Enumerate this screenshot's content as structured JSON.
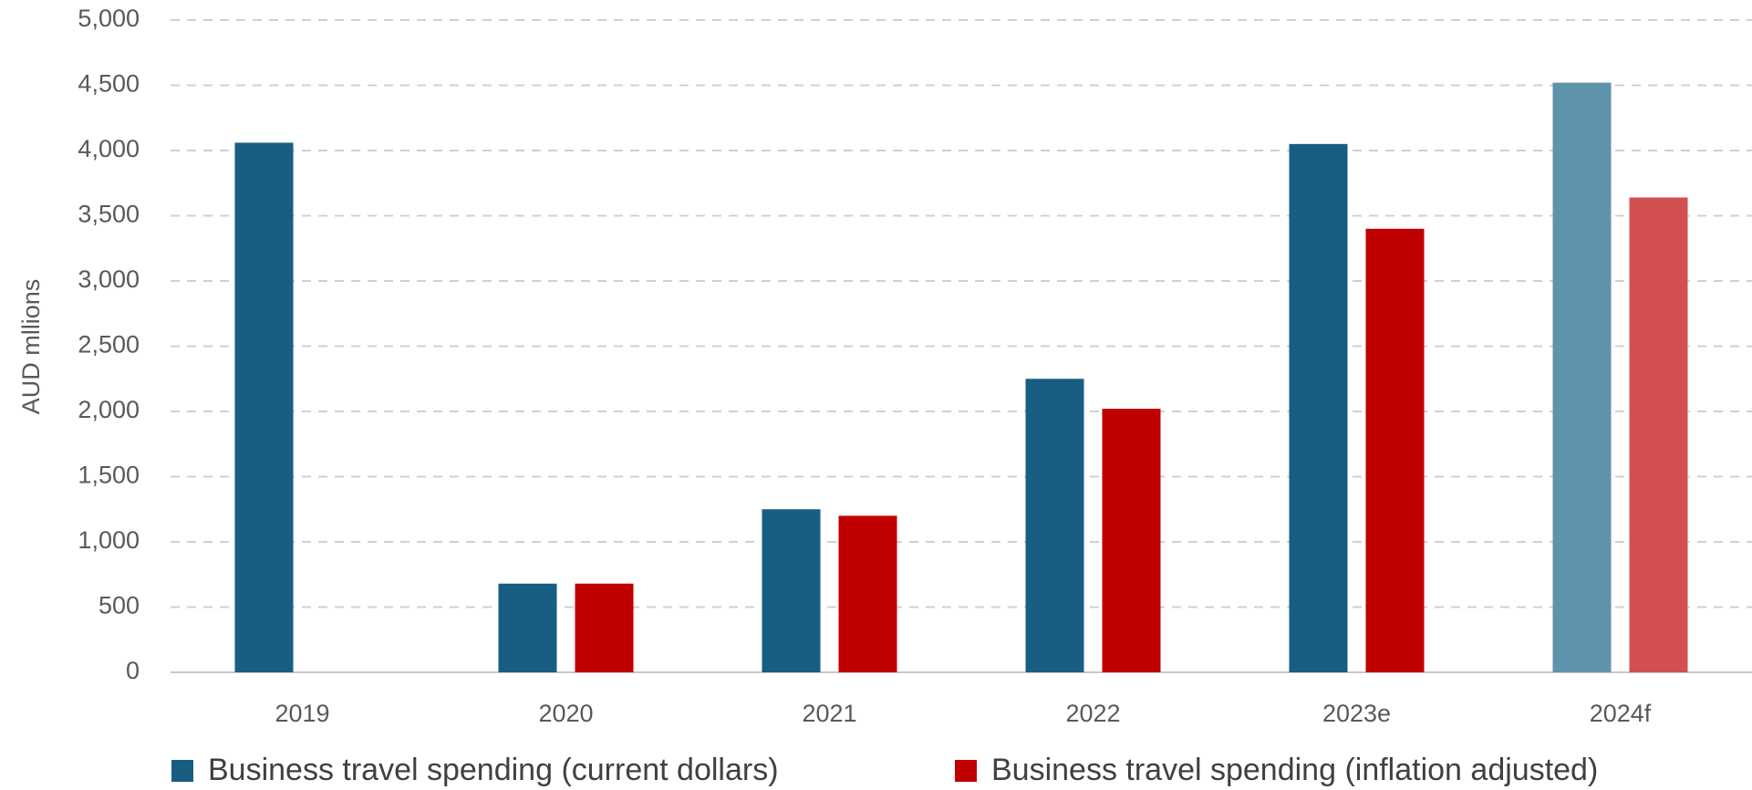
{
  "chart_data": {
    "type": "bar",
    "y_label": "AUD mllions",
    "categories": [
      "2019",
      "2020",
      "2021",
      "2022",
      "2023e",
      "2024f"
    ],
    "series": [
      {
        "name": "Business travel spending (current dollars)",
        "color": "#175e82",
        "colors": [
          "#175e82",
          "#175e82",
          "#175e82",
          "#175e82",
          "#175e82",
          "#5f93ac"
        ],
        "values": [
          4060,
          680,
          1250,
          2250,
          4050,
          4520
        ]
      },
      {
        "name": "Business travel spending (inflation adjusted)",
        "color": "#c00000",
        "colors": [
          "#c00000",
          "#c00000",
          "#c00000",
          "#c00000",
          "#c00000",
          "#d35050"
        ],
        "values": [
          null,
          680,
          1200,
          2020,
          3400,
          3640
        ]
      }
    ],
    "ylim": [
      0,
      5000
    ],
    "yticks": [
      {
        "value": 0,
        "label": "0"
      },
      {
        "value": 500,
        "label": "500"
      },
      {
        "value": 1000,
        "label": "1,000"
      },
      {
        "value": 1500,
        "label": "1,500"
      },
      {
        "value": 2000,
        "label": "2,000"
      },
      {
        "value": 2500,
        "label": "2,500"
      },
      {
        "value": 3000,
        "label": "3,000"
      },
      {
        "value": 3500,
        "label": "3,500"
      },
      {
        "value": 4000,
        "label": "4,000"
      },
      {
        "value": 4500,
        "label": "4,500"
      },
      {
        "value": 5000,
        "label": "5,000"
      }
    ],
    "grid": true,
    "legend": "bottom"
  }
}
